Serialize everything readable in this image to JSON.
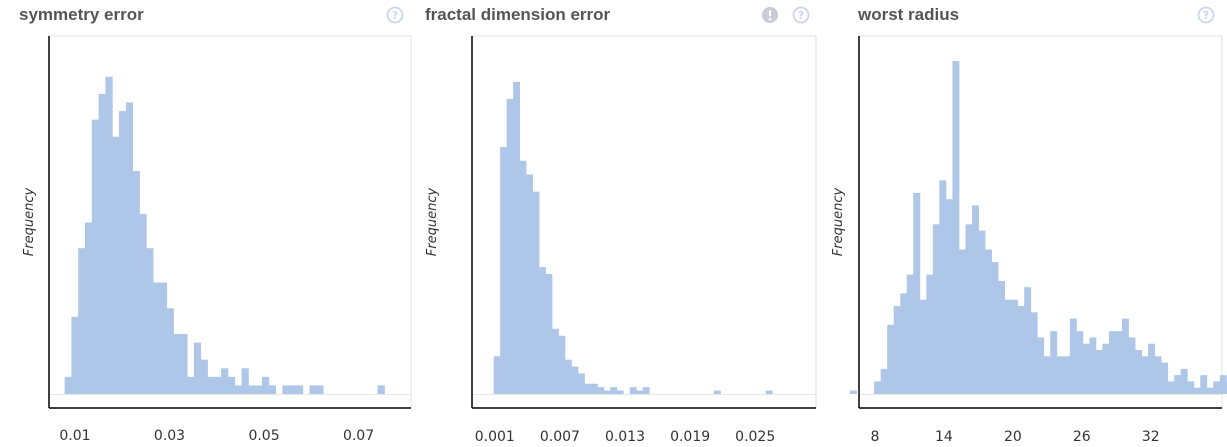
{
  "colors": {
    "bar": "#aec6e8",
    "frame": "#e2e2e2",
    "axis": "#000000",
    "help": "#c9d7ee",
    "warn": "#c7ccd6"
  },
  "chart_data": [
    {
      "type": "bar",
      "title": "symmetry error",
      "ylabel": "Frequency",
      "xlim": [
        0.0045,
        0.0811
      ],
      "xticks": [
        "0.01",
        "0.03",
        "0.05",
        "0.07"
      ],
      "xtick_values": [
        0.01,
        0.03,
        0.05,
        0.07
      ],
      "icons": [
        "help-icon"
      ],
      "bin_start": 0.0078,
      "bin_width": 0.00144,
      "values": [
        2,
        9,
        17,
        20,
        32,
        35,
        37,
        30,
        33,
        34,
        26,
        21,
        17,
        13,
        13,
        10,
        7,
        7,
        2,
        6,
        4,
        2,
        2,
        3,
        2,
        1,
        3,
        1,
        1,
        2,
        1,
        0,
        1,
        1,
        1,
        0,
        1,
        1,
        0,
        0,
        0,
        0,
        0,
        0,
        0,
        0,
        1
      ],
      "ylim": [
        0,
        40
      ]
    },
    {
      "type": "bar",
      "title": "fractal dimension error",
      "ylabel": "Frequency",
      "xlim": [
        -0.0011,
        0.0306
      ],
      "xticks": [
        "0.001",
        "0.007",
        "0.013",
        "0.019",
        "0.025"
      ],
      "xtick_values": [
        0.001,
        0.007,
        0.013,
        0.019,
        0.025
      ],
      "icons": [
        "warn-icon",
        "help-icon"
      ],
      "bin_start": 0.0009,
      "bin_width": 0.000597,
      "values": [
        11,
        72,
        86,
        91,
        68,
        64,
        59,
        37,
        35,
        19,
        17,
        10,
        8,
        6,
        3,
        3,
        2,
        1,
        2,
        1,
        0,
        2,
        1,
        2,
        0,
        0,
        0,
        0,
        0,
        0,
        0,
        0,
        0,
        0,
        1,
        0,
        0,
        0,
        0,
        0,
        0,
        0,
        1,
        0,
        0,
        0,
        0,
        0,
        0,
        0,
        0,
        0,
        0,
        0,
        0,
        1
      ],
      "ylim": [
        0,
        100
      ]
    },
    {
      "type": "bar",
      "title": "worst radius",
      "ylabel": "Frequency",
      "xlim": [
        6.61,
        38.2
      ],
      "xticks": [
        "8",
        "14",
        "20",
        "26",
        "32"
      ],
      "xtick_values": [
        8,
        14,
        20,
        26,
        32
      ],
      "icons": [
        "help-icon"
      ],
      "bin_start": 7.93,
      "bin_width": 0.5676,
      "values": [
        2,
        4,
        11,
        14,
        16,
        19,
        32,
        15,
        19,
        27,
        34,
        31,
        53,
        23,
        27,
        30,
        26,
        23,
        21,
        18,
        15,
        15,
        14,
        17,
        13,
        9,
        6,
        10,
        6,
        6,
        12,
        10,
        8,
        9,
        7,
        8,
        10,
        10,
        12,
        9,
        7,
        6,
        8,
        6,
        5,
        2,
        3,
        4,
        2,
        1,
        3,
        1,
        2,
        3,
        2,
        0,
        0,
        1
      ]
    }
  ]
}
